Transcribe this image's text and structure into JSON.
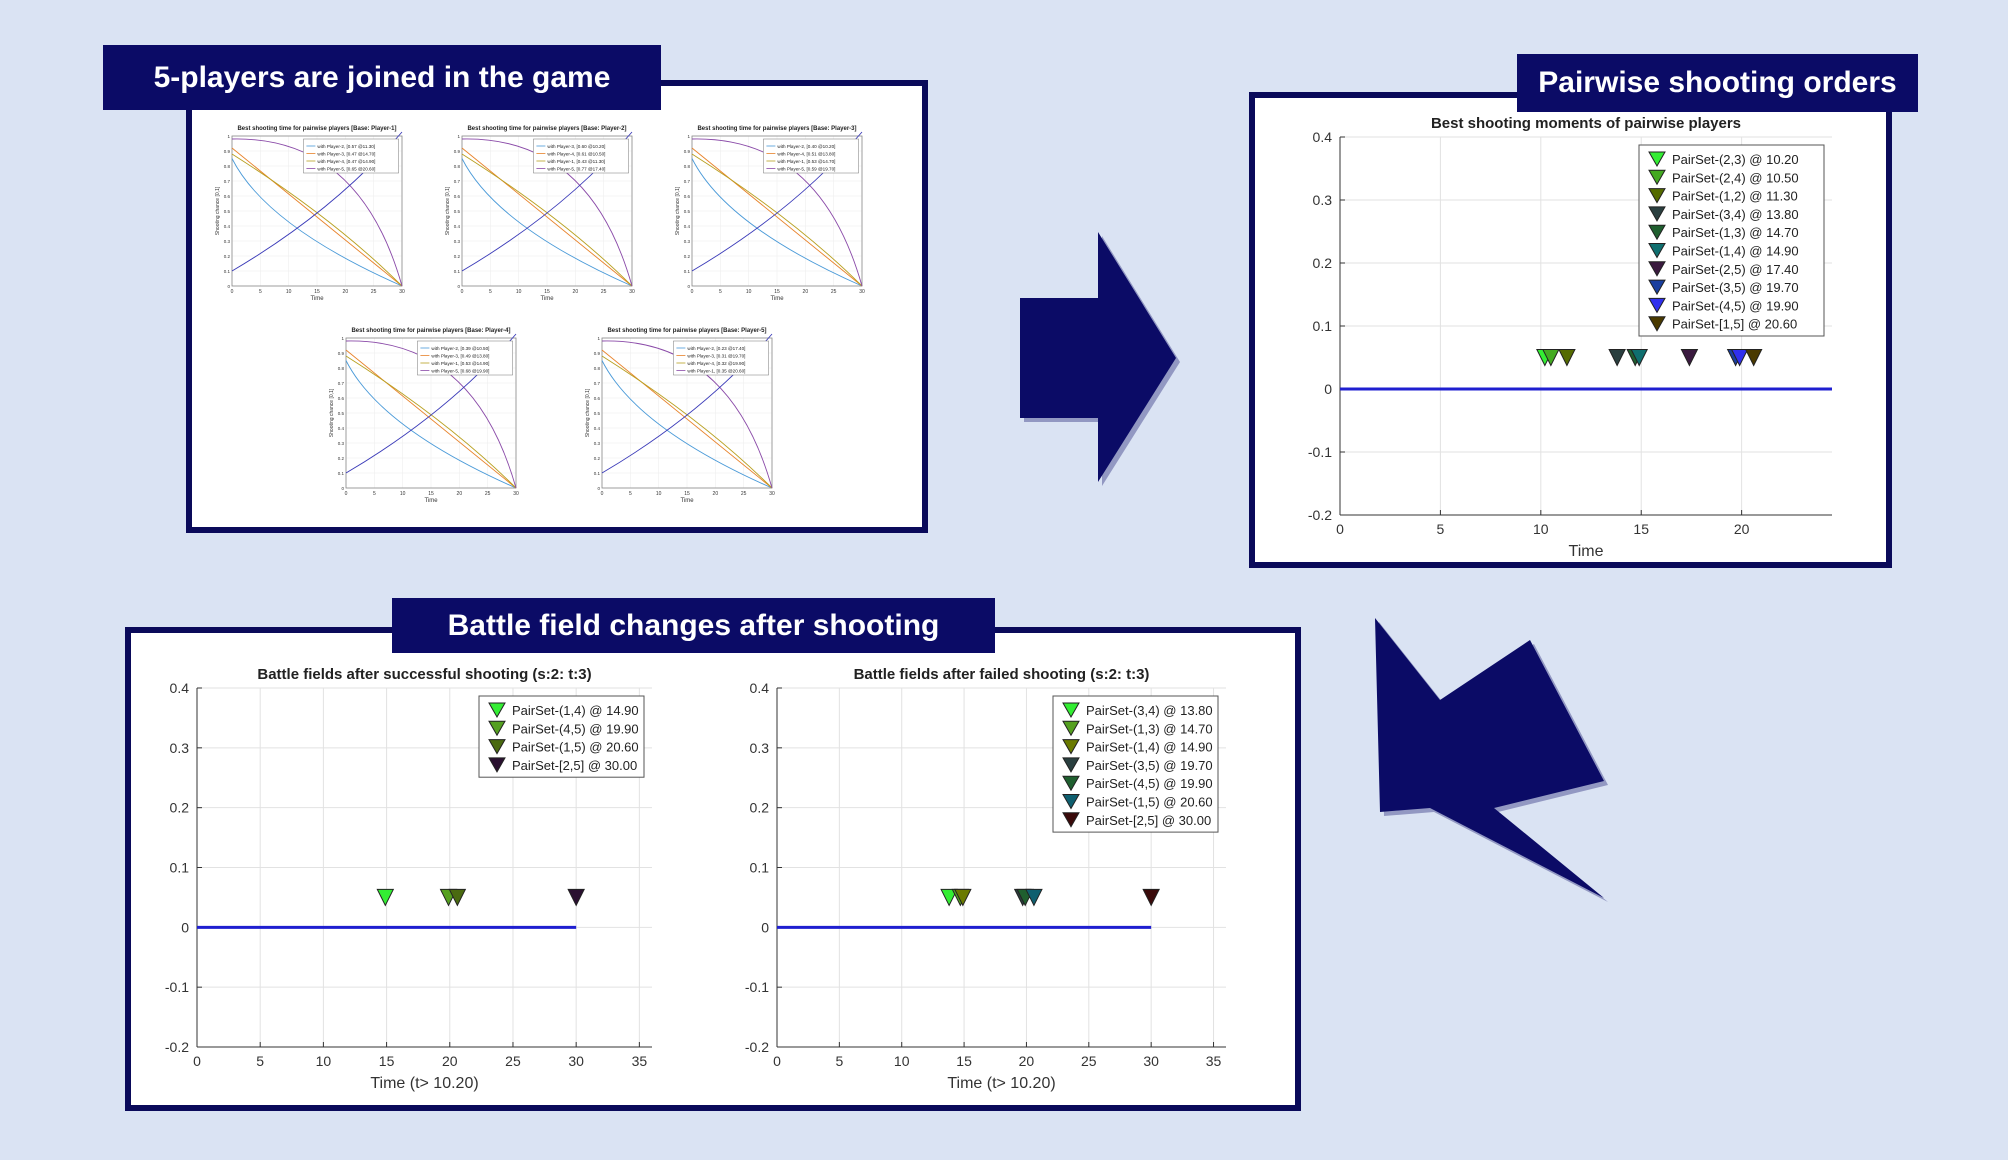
{
  "banners": {
    "top_left": "5-players are joined in the game",
    "top_right": "Pairwise shooting orders",
    "bottom": "Battle field changes after shooting"
  },
  "colors": {
    "background": "#dae3f3",
    "navy": "#0b0b66",
    "line_blue": "#1f1fd0"
  },
  "thumbnails": [
    {
      "title": "Best shooting time for pairwise players [Base: Player-1]",
      "ylabel": "Shooting chance [0,1]",
      "xlabel": "Time",
      "legend": [
        "with Player-2, [0.57 @11.30]",
        "with Player-3, [0.47 @14.70]",
        "with Player-4, [0.47 @14.90]",
        "with Player-5, [0.65 @20.60]"
      ]
    },
    {
      "title": "Best shooting time for pairwise players [Base: Player-2]",
      "ylabel": "Shooting chance [0,1]",
      "xlabel": "Time",
      "legend": [
        "with Player-3, [0.60 @10.20]",
        "with Player-4, [0.61 @10.50]",
        "with Player-1, [0.43 @11.30]",
        "with Player-5, [0.77 @17.40]"
      ]
    },
    {
      "title": "Best shooting time for pairwise players [Base: Player-3]",
      "ylabel": "Shooting chance [0,1]",
      "xlabel": "Time",
      "legend": [
        "with Player-2, [0.40 @10.20]",
        "with Player-4, [0.51 @13.80]",
        "with Player-1, [0.53 @14.70]",
        "with Player-5, [0.59 @19.70]"
      ]
    },
    {
      "title": "Best shooting time for pairwise players [Base: Player-4]",
      "ylabel": "Shooting chance [0,1]",
      "xlabel": "Time",
      "legend": [
        "with Player-2, [0.39 @10.50]",
        "with Player-3, [0.49 @13.80]",
        "with Player-1, [0.53 @14.90]",
        "with Player-5, [0.68 @19.90]"
      ]
    },
    {
      "title": "Best shooting time for pairwise players [Base: Player-5]",
      "ylabel": "Shooting chance [0,1]",
      "xlabel": "Time",
      "legend": [
        "with Player-2, [0.23 @17.40]",
        "with Player-3, [0.31 @19.70]",
        "with Player-4, [0.32 @19.90]",
        "with Player-1, [0.35 @20.60]"
      ]
    }
  ],
  "chart_data": [
    {
      "type": "scatter",
      "title": "Best shooting moments of pairwise players",
      "xlabel": "Time",
      "ylabel": "",
      "xlim": [
        0,
        24.5
      ],
      "ylim": [
        -0.2,
        0.4
      ],
      "xticks": [
        0,
        5,
        10,
        15,
        20
      ],
      "yticks": [
        0.4,
        0.3,
        0.2,
        0.1,
        0,
        -0.1,
        -0.2
      ],
      "ytick_labels": [
        "0.4",
        "0.3",
        "0.2",
        "0.1",
        "0",
        "-0.1",
        "-0.2"
      ],
      "baseline": {
        "x_from": 0,
        "x_to": 24.5,
        "y": 0
      },
      "marker_y": 0.05,
      "legend_position": "top-right",
      "series": [
        {
          "name": "PairSet-(2,3) @ 10.20",
          "x": 10.2,
          "color": "#33ee33"
        },
        {
          "name": "PairSet-(2,4) @ 10.50",
          "x": 10.5,
          "color": "#44aa22"
        },
        {
          "name": "PairSet-(1,2) @ 11.30",
          "x": 11.3,
          "color": "#556b00"
        },
        {
          "name": "PairSet-(3,4) @ 13.80",
          "x": 13.8,
          "color": "#2a3f3f"
        },
        {
          "name": "PairSet-(1,3) @ 14.70",
          "x": 14.7,
          "color": "#1f5f2f"
        },
        {
          "name": "PairSet-(1,4) @ 14.90",
          "x": 14.9,
          "color": "#0f6f6f"
        },
        {
          "name": "PairSet-(2,5) @ 17.40",
          "x": 17.4,
          "color": "#3a1a3f"
        },
        {
          "name": "PairSet-(3,5) @ 19.70",
          "x": 19.7,
          "color": "#1a3f9f"
        },
        {
          "name": "PairSet-(4,5) @ 19.90",
          "x": 19.9,
          "color": "#3030ee"
        },
        {
          "name": "PairSet-[1,5] @ 20.60",
          "x": 20.6,
          "color": "#4a3a00"
        }
      ]
    },
    {
      "type": "scatter",
      "title": "Battle fields after successful shooting (s:2: t:3)",
      "xlabel": "Time (t> 10.20)",
      "ylabel": "",
      "xlim": [
        0,
        36
      ],
      "ylim": [
        -0.2,
        0.4
      ],
      "xticks": [
        0,
        5,
        10,
        15,
        20,
        25,
        30,
        35
      ],
      "yticks": [
        0.4,
        0.3,
        0.2,
        0.1,
        0,
        -0.1,
        -0.2
      ],
      "ytick_labels": [
        "0.4",
        "0.3",
        "0.2",
        "0.1",
        "0",
        "-0.1",
        "-0.2"
      ],
      "baseline": {
        "x_from": 0,
        "x_to": 30,
        "y": 0
      },
      "marker_y": 0.05,
      "legend_position": "top-right",
      "series": [
        {
          "name": "PairSet-(1,4) @ 14.90",
          "x": 14.9,
          "color": "#33ee33"
        },
        {
          "name": "PairSet-(4,5) @ 19.90",
          "x": 19.9,
          "color": "#55a020"
        },
        {
          "name": "PairSet-(1,5) @ 20.60",
          "x": 20.6,
          "color": "#4a6a10"
        },
        {
          "name": "PairSet-[2,5] @ 30.00",
          "x": 30.0,
          "color": "#2a1030"
        }
      ]
    },
    {
      "type": "scatter",
      "title": "Battle fields after failed shooting (s:2: t:3)",
      "xlabel": "Time (t> 10.20)",
      "ylabel": "",
      "xlim": [
        0,
        36
      ],
      "ylim": [
        -0.2,
        0.4
      ],
      "xticks": [
        0,
        5,
        10,
        15,
        20,
        25,
        30,
        35
      ],
      "yticks": [
        0.4,
        0.3,
        0.2,
        0.1,
        0,
        -0.1,
        -0.2
      ],
      "ytick_labels": [
        "0.4",
        "0.3",
        "0.2",
        "0.1",
        "0",
        "-0.1",
        "-0.2"
      ],
      "baseline": {
        "x_from": 0,
        "x_to": 30,
        "y": 0
      },
      "marker_y": 0.05,
      "legend_position": "top-right",
      "series": [
        {
          "name": "PairSet-(3,4) @ 13.80",
          "x": 13.8,
          "color": "#33ee33"
        },
        {
          "name": "PairSet-(1,3) @ 14.70",
          "x": 14.7,
          "color": "#55a020"
        },
        {
          "name": "PairSet-(1,4) @ 14.90",
          "x": 14.9,
          "color": "#6a7a00"
        },
        {
          "name": "PairSet-(3,5) @ 19.70",
          "x": 19.7,
          "color": "#2a3f3f"
        },
        {
          "name": "PairSet-(4,5) @ 19.90",
          "x": 19.9,
          "color": "#1f5f2f"
        },
        {
          "name": "PairSet-(1,5) @ 20.60",
          "x": 20.6,
          "color": "#0f5f6f"
        },
        {
          "name": "PairSet-[2,5] @ 30.00",
          "x": 30.0,
          "color": "#3a0a0a"
        }
      ]
    }
  ]
}
